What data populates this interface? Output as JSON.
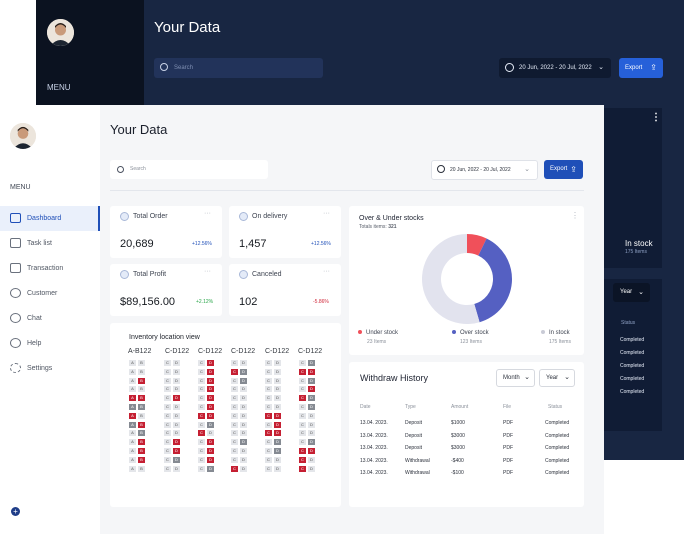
{
  "back_window": {
    "menu_label": "MENU",
    "title": "Your Data",
    "search_placeholder": "Search",
    "date_range": "20 Jun, 2022 - 20 Jul, 2022",
    "export_label": "Export",
    "in_stock_label": "In stock",
    "in_stock_sub": "175 Items",
    "year_label": "Year",
    "status_header": "Status",
    "statuses": [
      "Completed",
      "Completed",
      "Completed",
      "Completed",
      "Completed"
    ]
  },
  "sidebar": {
    "menu_label": "MENU",
    "items": [
      {
        "label": "Dashboard",
        "icon": "dashboard-icon",
        "active": true
      },
      {
        "label": "Task list",
        "icon": "task-list-icon",
        "active": false
      },
      {
        "label": "Transaction",
        "icon": "transaction-icon",
        "active": false
      },
      {
        "label": "Customer",
        "icon": "customer-icon",
        "active": false
      },
      {
        "label": "Chat",
        "icon": "chat-icon",
        "active": false
      },
      {
        "label": "Help",
        "icon": "help-icon",
        "active": false
      },
      {
        "label": "Settings",
        "icon": "settings-icon",
        "active": false
      }
    ]
  },
  "header": {
    "title": "Your Data",
    "search_placeholder": "Search",
    "date_range": "20 Jun, 2022 - 20 Jul, 2022",
    "export_label": "Export"
  },
  "kpis": [
    {
      "label": "Total Order",
      "value": "20,689",
      "change": "+12.56%",
      "change_color": "#1f4fb8",
      "icon": "dollar-icon"
    },
    {
      "label": "On delivery",
      "value": "1,457",
      "change": "+12.56%",
      "change_color": "#1f4fb8",
      "icon": "truck-icon"
    },
    {
      "label": "Total Profit",
      "value": "$89,156.00",
      "change": "+2.12%",
      "change_color": "#2aa64a",
      "icon": "profit-icon"
    },
    {
      "label": "Canceled",
      "value": "102",
      "change": "-5.86%",
      "change_color": "#d0283a",
      "icon": "cancel-icon"
    }
  ],
  "inventory": {
    "title": "Inventory location view",
    "columns": [
      "A-B122",
      "C-D122",
      "C-D122",
      "C-D122",
      "C-D122",
      "C-D122"
    ],
    "rows": [
      [
        [
          "A",
          "",
          "B",
          ""
        ],
        [
          "C",
          "",
          "D",
          ""
        ],
        [
          "C",
          "",
          "D",
          "r"
        ],
        [
          "C",
          "",
          "D",
          ""
        ],
        [
          "C",
          "",
          "D",
          ""
        ],
        [
          "C",
          "",
          "D",
          "g"
        ]
      ],
      [
        [
          "A",
          "",
          "B",
          ""
        ],
        [
          "C",
          "",
          "D",
          ""
        ],
        [
          "C",
          "",
          "D",
          "r"
        ],
        [
          "C",
          "r",
          "D",
          "g"
        ],
        [
          "C",
          "",
          "D",
          ""
        ],
        [
          "C",
          "r",
          "D",
          "r"
        ]
      ],
      [
        [
          "A",
          "",
          "B",
          "r"
        ],
        [
          "C",
          "",
          "D",
          ""
        ],
        [
          "C",
          "",
          "D",
          "r"
        ],
        [
          "C",
          "",
          "D",
          "g"
        ],
        [
          "C",
          "",
          "D",
          ""
        ],
        [
          "C",
          "",
          "D",
          "g"
        ]
      ],
      [
        [
          "A",
          "",
          "B",
          ""
        ],
        [
          "C",
          "",
          "D",
          ""
        ],
        [
          "C",
          "",
          "D",
          "r"
        ],
        [
          "C",
          "",
          "D",
          ""
        ],
        [
          "C",
          "",
          "D",
          ""
        ],
        [
          "C",
          "",
          "D",
          "r"
        ]
      ],
      [
        [
          "A",
          "r",
          "B",
          "r"
        ],
        [
          "C",
          "",
          "D",
          "r"
        ],
        [
          "C",
          "",
          "D",
          "r"
        ],
        [
          "C",
          "",
          "D",
          ""
        ],
        [
          "C",
          "",
          "D",
          ""
        ],
        [
          "C",
          "r",
          "D",
          "g"
        ]
      ],
      [
        [
          "A",
          "g",
          "B",
          "g"
        ],
        [
          "C",
          "",
          "D",
          ""
        ],
        [
          "C",
          "",
          "D",
          "r"
        ],
        [
          "C",
          "",
          "D",
          ""
        ],
        [
          "C",
          "",
          "D",
          ""
        ],
        [
          "C",
          "",
          "D",
          "g"
        ]
      ],
      [
        [
          "A",
          "r",
          "B",
          ""
        ],
        [
          "C",
          "",
          "D",
          ""
        ],
        [
          "C",
          "r",
          "D",
          "r"
        ],
        [
          "C",
          "",
          "D",
          ""
        ],
        [
          "C",
          "r",
          "D",
          "r"
        ],
        [
          "C",
          "",
          "D",
          ""
        ]
      ],
      [
        [
          "A",
          "g",
          "B",
          "r"
        ],
        [
          "C",
          "",
          "D",
          ""
        ],
        [
          "C",
          "",
          "D",
          "g"
        ],
        [
          "C",
          "",
          "D",
          ""
        ],
        [
          "C",
          "",
          "D",
          "r"
        ],
        [
          "C",
          "",
          "D",
          ""
        ]
      ],
      [
        [
          "A",
          "",
          "B",
          "g"
        ],
        [
          "C",
          "",
          "D",
          ""
        ],
        [
          "C",
          "r",
          "D",
          ""
        ],
        [
          "C",
          "",
          "D",
          ""
        ],
        [
          "C",
          "r",
          "D",
          "r"
        ],
        [
          "C",
          "",
          "D",
          ""
        ]
      ],
      [
        [
          "A",
          "",
          "B",
          "r"
        ],
        [
          "C",
          "",
          "D",
          "r"
        ],
        [
          "C",
          "",
          "D",
          "r"
        ],
        [
          "C",
          "",
          "D",
          "g"
        ],
        [
          "C",
          "",
          "D",
          "g"
        ],
        [
          "C",
          "",
          "D",
          "g"
        ]
      ],
      [
        [
          "A",
          "",
          "B",
          "r"
        ],
        [
          "C",
          "",
          "D",
          "r"
        ],
        [
          "C",
          "",
          "D",
          "r"
        ],
        [
          "C",
          "",
          "D",
          ""
        ],
        [
          "C",
          "",
          "D",
          "g"
        ],
        [
          "C",
          "r",
          "D",
          "r"
        ]
      ],
      [
        [
          "A",
          "",
          "B",
          "r"
        ],
        [
          "C",
          "",
          "D",
          "g"
        ],
        [
          "C",
          "",
          "D",
          "r"
        ],
        [
          "C",
          "",
          "D",
          ""
        ],
        [
          "C",
          "",
          "D",
          ""
        ],
        [
          "C",
          "r",
          "D",
          ""
        ]
      ],
      [
        [
          "A",
          "",
          "B",
          ""
        ],
        [
          "C",
          "",
          "D",
          ""
        ],
        [
          "C",
          "",
          "D",
          "g"
        ],
        [
          "C",
          "r",
          "D",
          ""
        ],
        [
          "C",
          "",
          "D",
          ""
        ],
        [
          "C",
          "r",
          "D",
          ""
        ]
      ]
    ]
  },
  "stock": {
    "title": "Over & Under stocks",
    "subtitle_label": "Totals items:",
    "subtitle_value": "321",
    "legend": [
      {
        "label": "Under stock",
        "sub": "23 Items",
        "color": "#f0505a"
      },
      {
        "label": "Over stock",
        "sub": "123 Items",
        "color": "#5560c2"
      },
      {
        "label": "In stock",
        "sub": "175 Items",
        "color": "#e2e3ee"
      }
    ]
  },
  "chart_data": {
    "type": "pie",
    "title": "Over & Under stocks",
    "categories": [
      "Under stock",
      "Over stock",
      "In stock"
    ],
    "values": [
      23,
      123,
      175
    ],
    "colors": [
      "#f0505a",
      "#5560c2",
      "#e2e3ee"
    ]
  },
  "withdraw": {
    "title": "Withdraw History",
    "month_label": "Month",
    "year_label": "Year",
    "headers": [
      "Date",
      "Type",
      "Amount",
      "File",
      "Status"
    ],
    "rows": [
      [
        "13.04. 2023.",
        "Deposit",
        "$1000",
        "PDF",
        "Completed"
      ],
      [
        "13.04. 2023.",
        "Deposit",
        "$3000",
        "PDF",
        "Completed"
      ],
      [
        "13.04. 2023.",
        "Deposit",
        "$3000",
        "PDF",
        "Completed"
      ],
      [
        "13.04. 2023.",
        "Withdrawal",
        "-$400",
        "PDF",
        "Completed"
      ],
      [
        "13.04. 2023.",
        "Withdrawal",
        "-$100",
        "PDF",
        "Completed"
      ]
    ]
  }
}
